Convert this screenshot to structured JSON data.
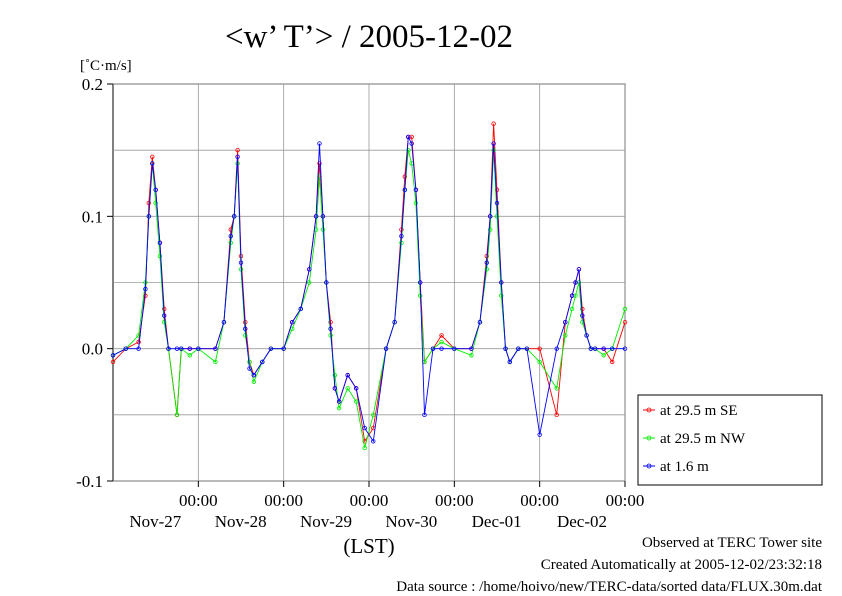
{
  "chart_data": {
    "type": "line",
    "title": "<w’ T’> / 2005-12-02",
    "ylabel": "[˚C·m/s]",
    "xlabel": "(LST)",
    "ylim": [
      -0.1,
      0.2
    ],
    "yticks": [
      "0.2",
      "0.1",
      "0.0",
      "-0.1"
    ],
    "ytick_values": [
      0.2,
      0.1,
      0.0,
      -0.1
    ],
    "xlim": [
      0,
      6
    ],
    "x_unit": "days, plotted against local time (LST), window ends 2005-12-02 24:00",
    "xticks": [
      {
        "time": "00:00",
        "date": "Nov-27"
      },
      {
        "time": "00:00",
        "date": "Nov-28"
      },
      {
        "time": "00:00",
        "date": "Nov-29"
      },
      {
        "time": "00:00",
        "date": "Nov-30"
      },
      {
        "time": "00:00",
        "date": "Dec-01"
      },
      {
        "time": "00:00",
        "date": "Dec-02"
      }
    ],
    "grid": true,
    "legend_position": "bottom-right outside",
    "series": [
      {
        "name": "at 29.5 m SE",
        "color": "#ff0000",
        "x": [
          0,
          0.15,
          0.3,
          0.38,
          0.42,
          0.46,
          0.5,
          0.55,
          0.6,
          0.65,
          0.75,
          0.8,
          0.9,
          1.0,
          1.2,
          1.3,
          1.38,
          1.42,
          1.46,
          1.5,
          1.55,
          1.6,
          1.65,
          1.75,
          1.85,
          2.0,
          2.1,
          2.2,
          2.3,
          2.38,
          2.42,
          2.46,
          2.5,
          2.55,
          2.6,
          2.65,
          2.75,
          2.85,
          2.95,
          3.05,
          3.2,
          3.3,
          3.38,
          3.42,
          3.46,
          3.5,
          3.55,
          3.6,
          3.65,
          3.75,
          3.85,
          4.0,
          4.2,
          4.3,
          4.38,
          4.42,
          4.46,
          4.5,
          4.55,
          4.6,
          4.65,
          4.75,
          4.85,
          5.0,
          5.2,
          5.3,
          5.38,
          5.42,
          5.46,
          5.5,
          5.55,
          5.6,
          5.65,
          5.75,
          5.85,
          6.0
        ],
        "values": [
          -0.01,
          0.0,
          0.005,
          0.04,
          0.11,
          0.145,
          0.12,
          0.08,
          0.03,
          0.0,
          -0.05,
          0.0,
          0.0,
          0.0,
          0.0,
          0.02,
          0.09,
          0.1,
          0.15,
          0.07,
          0.02,
          -0.01,
          -0.02,
          -0.01,
          0.0,
          0.0,
          0.02,
          0.03,
          0.06,
          0.1,
          0.14,
          0.1,
          0.05,
          0.02,
          -0.03,
          -0.04,
          -0.02,
          -0.03,
          -0.07,
          -0.06,
          0.0,
          0.02,
          0.09,
          0.13,
          0.16,
          0.16,
          0.12,
          0.05,
          -0.01,
          0.0,
          0.01,
          0.0,
          0.0,
          0.02,
          0.07,
          0.1,
          0.17,
          0.12,
          0.05,
          0.0,
          -0.01,
          0.0,
          0.0,
          0.0,
          -0.05,
          0.02,
          0.04,
          0.05,
          0.06,
          0.03,
          0.01,
          0.0,
          0.0,
          0.0,
          -0.01,
          0.02
        ]
      },
      {
        "name": "at 29.5 m NW",
        "color": "#00ee00",
        "x": [
          0,
          0.15,
          0.3,
          0.38,
          0.42,
          0.46,
          0.5,
          0.55,
          0.6,
          0.65,
          0.75,
          0.8,
          0.9,
          1.0,
          1.2,
          1.3,
          1.38,
          1.42,
          1.46,
          1.5,
          1.55,
          1.6,
          1.65,
          1.75,
          1.85,
          2.0,
          2.1,
          2.2,
          2.3,
          2.38,
          2.42,
          2.46,
          2.5,
          2.55,
          2.6,
          2.65,
          2.75,
          2.85,
          2.95,
          3.05,
          3.2,
          3.3,
          3.38,
          3.42,
          3.46,
          3.5,
          3.55,
          3.6,
          3.65,
          3.75,
          3.85,
          4.0,
          4.2,
          4.3,
          4.38,
          4.42,
          4.46,
          4.5,
          4.55,
          4.6,
          4.65,
          4.75,
          4.85,
          5.0,
          5.2,
          5.3,
          5.38,
          5.42,
          5.46,
          5.5,
          5.55,
          5.6,
          5.65,
          5.75,
          5.85,
          6.0
        ],
        "values": [
          -0.005,
          0.0,
          0.01,
          0.05,
          0.1,
          0.14,
          0.11,
          0.07,
          0.02,
          0.0,
          -0.05,
          0.0,
          -0.005,
          0.0,
          -0.01,
          0.02,
          0.08,
          0.1,
          0.14,
          0.06,
          0.01,
          -0.01,
          -0.025,
          -0.01,
          0.0,
          0.0,
          0.015,
          0.03,
          0.05,
          0.09,
          0.13,
          0.09,
          0.05,
          0.01,
          -0.02,
          -0.045,
          -0.03,
          -0.04,
          -0.075,
          -0.05,
          0.0,
          0.02,
          0.08,
          0.12,
          0.15,
          0.14,
          0.11,
          0.04,
          -0.01,
          0.0,
          0.005,
          0.0,
          -0.005,
          0.02,
          0.06,
          0.09,
          0.15,
          0.1,
          0.04,
          0.0,
          -0.01,
          0.0,
          0.0,
          -0.01,
          -0.03,
          0.01,
          0.03,
          0.04,
          0.05,
          0.02,
          0.01,
          0.0,
          0.0,
          -0.005,
          0.0,
          0.03
        ]
      },
      {
        "name": "at 1.6 m",
        "color": "#0000ff",
        "x": [
          0,
          0.15,
          0.3,
          0.38,
          0.42,
          0.46,
          0.5,
          0.55,
          0.6,
          0.65,
          0.75,
          0.8,
          0.9,
          1.0,
          1.2,
          1.3,
          1.38,
          1.42,
          1.46,
          1.5,
          1.55,
          1.6,
          1.65,
          1.75,
          1.85,
          2.0,
          2.1,
          2.2,
          2.3,
          2.38,
          2.42,
          2.46,
          2.5,
          2.55,
          2.6,
          2.65,
          2.75,
          2.85,
          2.95,
          3.05,
          3.2,
          3.3,
          3.38,
          3.42,
          3.46,
          3.5,
          3.55,
          3.6,
          3.65,
          3.75,
          3.85,
          4.0,
          4.2,
          4.3,
          4.38,
          4.42,
          4.46,
          4.5,
          4.55,
          4.6,
          4.65,
          4.75,
          4.85,
          5.0,
          5.2,
          5.3,
          5.38,
          5.42,
          5.46,
          5.5,
          5.55,
          5.6,
          5.65,
          5.75,
          5.85,
          6.0
        ],
        "values": [
          -0.005,
          0.0,
          0.0,
          0.045,
          0.1,
          0.14,
          0.12,
          0.08,
          0.025,
          0.0,
          0.0,
          0.0,
          0.0,
          0.0,
          0.0,
          0.02,
          0.085,
          0.1,
          0.145,
          0.065,
          0.015,
          -0.015,
          -0.02,
          -0.01,
          0.0,
          0.0,
          0.02,
          0.03,
          0.06,
          0.1,
          0.155,
          0.1,
          0.05,
          0.015,
          -0.03,
          -0.04,
          -0.02,
          -0.03,
          -0.06,
          -0.07,
          0.0,
          0.02,
          0.085,
          0.12,
          0.16,
          0.155,
          0.12,
          0.05,
          -0.05,
          0.0,
          0.0,
          0.0,
          0.0,
          0.02,
          0.065,
          0.1,
          0.155,
          0.11,
          0.05,
          0.0,
          -0.01,
          0.0,
          0.0,
          -0.065,
          0.0,
          0.02,
          0.04,
          0.05,
          0.06,
          0.025,
          0.01,
          0.0,
          0.0,
          0.0,
          0.0,
          0.0
        ]
      }
    ]
  },
  "footer": {
    "observed": "Observed at TERC Tower site",
    "created": "Created Automatically at 2005-12-02/23:32:18",
    "source": "Data source : /home/hoivo/new/TERC-data/sorted  data/FLUX.30m.dat"
  }
}
